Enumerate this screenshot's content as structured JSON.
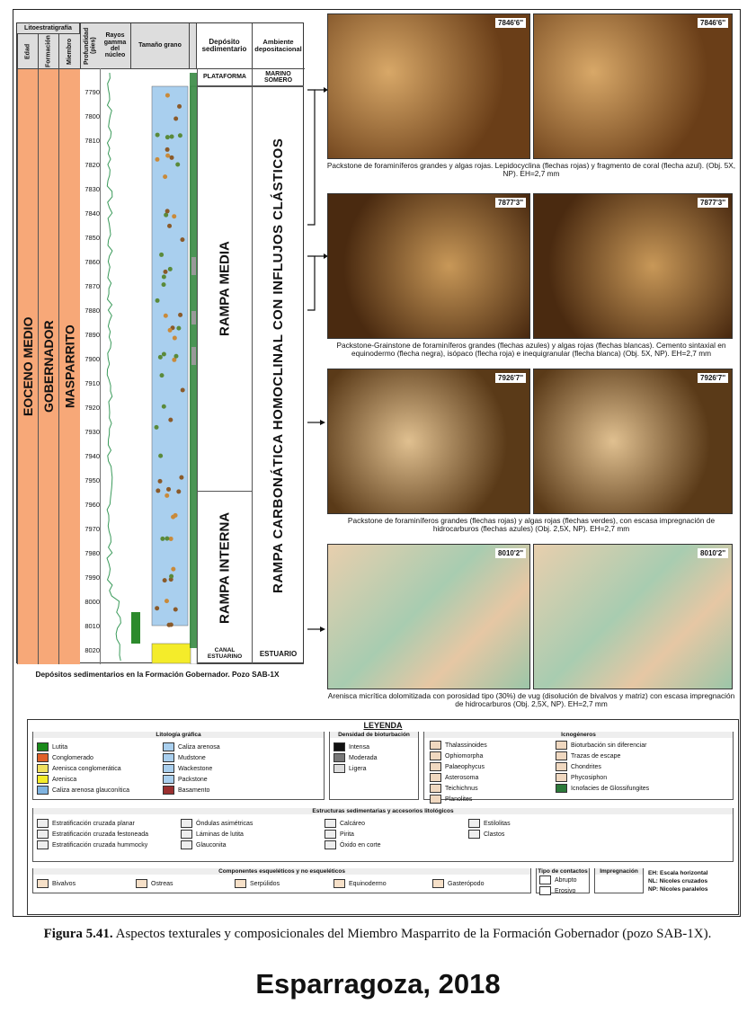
{
  "log": {
    "headers": {
      "group": "Litoestratigrafía",
      "edad": "Edad",
      "formacion": "Formación",
      "miembro": "Miembro",
      "depth": "Profundidad (pies)",
      "gamma": "Rayos gamma del núcleo",
      "grain": "Tamaño grano",
      "deposit": "Depósito sedimentario",
      "environment": "Ambiente depositacional"
    },
    "edad": "EOCENO MEDIO",
    "formacion": "GOBERNADOR",
    "miembro": "MASPARRITO",
    "depths": [
      7790,
      7800,
      7810,
      7820,
      7830,
      7840,
      7850,
      7860,
      7870,
      7880,
      7890,
      7900,
      7910,
      7920,
      7930,
      7940,
      7950,
      7960,
      7970,
      7980,
      7990,
      8000,
      8010,
      8020
    ],
    "deposits": [
      "PLATAFORMA",
      "RAMPA MEDIA",
      "RAMPA INTERNA",
      "CANAL ESTUARINO"
    ],
    "environments": [
      "MARINO SOMERO",
      "RAMPA CARBONÁTICA HOMOCLINAL CON INFLUJOS CLÁSTICOS",
      "ESTUARIO"
    ],
    "caption": "Depósitos sedimentarios en la Formación Gobernador. Pozo SAB-1X"
  },
  "photos": [
    {
      "labels": [
        "7846'6''",
        "7846'6''"
      ],
      "caption": "Packstone de foraminíferos grandes y algas rojas. Lepidocyclina (flechas rojas) y fragmento de coral (flecha azul). (Obj. 5X, NP). EH=2,7 mm"
    },
    {
      "labels": [
        "7877'3''",
        "7877'3''"
      ],
      "caption": "Packstone-Grainstone de foraminíferos grandes (flechas azules) y algas rojas (flechas blancas). Cemento sintaxial en equinodermo (flecha negra), isópaco (flecha roja) e inequigranular (flecha blanca) (Obj. 5X, NP). EH=2,7 mm"
    },
    {
      "labels": [
        "7926'7''",
        "7926'7''"
      ],
      "caption": "Packstone de foraminíferos grandes (flechas rojas) y algas rojas (flechas verdes), con escasa impregnación de hidrocarburos (flechas azules) (Obj. 2,5X, NP). EH=2,7 mm"
    },
    {
      "labels": [
        "8010'2''",
        "8010'2''"
      ],
      "caption": "Arenisca micrítica dolomitizada con porosidad tipo (30%) de vug (disolución de bivalvos y matriz) con escasa impregnación de hidrocarburos (Obj. 2,5X, NP). EH=2,7 mm"
    }
  ],
  "legend": {
    "title": "LEYENDA",
    "lithology": {
      "title": "Litología gráfica",
      "items": [
        "Lutita",
        "Conglomerado",
        "Arenisca conglomerática",
        "Arenisca",
        "Caliza arenosa glauconítica",
        "Caliza arenosa",
        "Mudstone",
        "Wackestone",
        "Packstone",
        "Basamento"
      ]
    },
    "bioturbation": {
      "title": "Densidad de bioturbación",
      "items": [
        "Intensa",
        "Moderada",
        "Ligera"
      ]
    },
    "ichnogenera": {
      "title": "Icnogéneros",
      "items": [
        "Thalassinoides",
        "Ophiomorpha",
        "Palaeophycus",
        "Asterosoma",
        "Teichichnus",
        "Planolites",
        "Bioturbación sin diferenciar",
        "Trazas de escape",
        "Chondrites",
        "Phycosiphon",
        "Icnofacies de Glossifungites"
      ]
    },
    "structures": {
      "title": "Estructuras sedimentarias y accesorios litológicos",
      "items": [
        "Estratificación cruzada planar",
        "Estratificación cruzada festoneada",
        "Estratificación cruzada hummocky",
        "Óndulas asimétricas",
        "Láminas de lutita",
        "Glauconita",
        "Calcáreo",
        "Pirita",
        "Óxido en corte",
        "Estilolitas",
        "Clastos"
      ]
    },
    "components": {
      "title": "Componentes esqueléticos y no esqueléticos",
      "items": [
        "Bivalvos",
        "Ostreas",
        "Serpúlidos",
        "Equinodermo",
        "Gasterópodo"
      ]
    },
    "contacts": {
      "title": "Tipo de contactos",
      "items": [
        "Abrupto",
        "Erosivo"
      ]
    },
    "impregnation": {
      "title": "Impregnación"
    },
    "abbreviations": [
      "EH: Escala horizontal",
      "NL: Nicoles cruzados",
      "NP: Nicoles paralelos"
    ]
  },
  "figure": {
    "label": "Figura 5.41.",
    "text": "Aspectos texturales y composicionales del Miembro Masparrito de la Formación Gobernador (pozo SAB-1X).",
    "credit": "Esparragoza, 2018"
  }
}
